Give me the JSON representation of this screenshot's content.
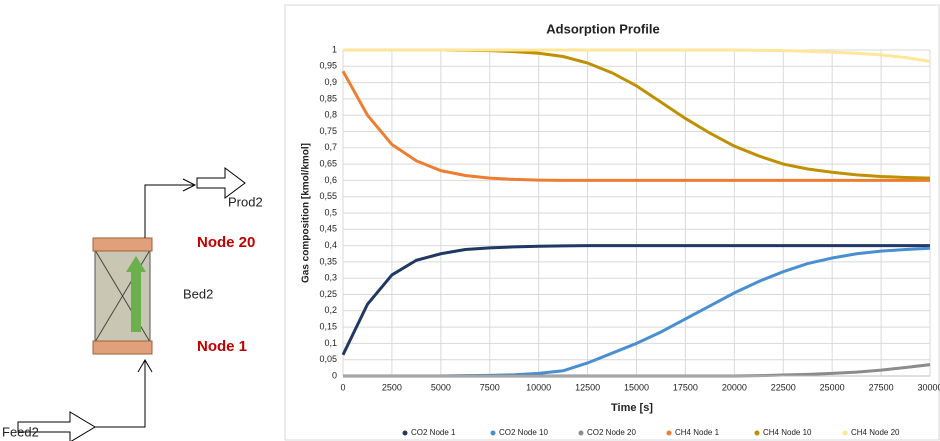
{
  "diagram": {
    "feed": "Feed2",
    "product": "Prod2",
    "bed": "Bed2",
    "top_node": "Node 20",
    "bottom_node": "Node 1"
  },
  "chart_data": {
    "type": "line",
    "title": "Adsorption Profile",
    "x_label": "Time [s]",
    "y_label": "Gas composition [kmol/kmol]",
    "x": [
      0,
      1250,
      2500,
      3750,
      5000,
      6250,
      7500,
      8750,
      10000,
      11250,
      12500,
      13750,
      15000,
      16250,
      17500,
      18750,
      20000,
      21250,
      22500,
      23750,
      25000,
      26250,
      27500,
      28750,
      30000
    ],
    "series": [
      {
        "name": "CO2 Node 1",
        "color": "#1f3864",
        "values": [
          0.065,
          0.22,
          0.31,
          0.355,
          0.375,
          0.388,
          0.393,
          0.396,
          0.398,
          0.399,
          0.4,
          0.4,
          0.4,
          0.4,
          0.4,
          0.4,
          0.4,
          0.4,
          0.4,
          0.4,
          0.4,
          0.4,
          0.4,
          0.4,
          0.4
        ]
      },
      {
        "name": "CO2 Node 10",
        "color": "#4a8fd0",
        "values": [
          0,
          0,
          0,
          0,
          0,
          0.001,
          0.002,
          0.004,
          0.008,
          0.016,
          0.04,
          0.07,
          0.1,
          0.135,
          0.175,
          0.215,
          0.255,
          0.29,
          0.32,
          0.345,
          0.362,
          0.375,
          0.383,
          0.388,
          0.392
        ]
      },
      {
        "name": "CO2 Node 20",
        "color": "#8c8c8c",
        "values": [
          0,
          0,
          0,
          0,
          0,
          0,
          0,
          0,
          0,
          0,
          0,
          0,
          0,
          0,
          0,
          0,
          0,
          0.001,
          0.003,
          0.005,
          0.008,
          0.012,
          0.018,
          0.026,
          0.035
        ]
      },
      {
        "name": "CH4 Node 1",
        "color": "#ed7d31",
        "values": [
          0.935,
          0.8,
          0.71,
          0.66,
          0.63,
          0.615,
          0.607,
          0.603,
          0.601,
          0.6,
          0.6,
          0.6,
          0.6,
          0.6,
          0.6,
          0.6,
          0.6,
          0.6,
          0.6,
          0.6,
          0.6,
          0.6,
          0.6,
          0.6,
          0.6
        ]
      },
      {
        "name": "CH4 Node 10",
        "color": "#bf9000",
        "values": [
          1,
          1,
          1,
          1,
          1,
          0.999,
          0.998,
          0.995,
          0.99,
          0.98,
          0.96,
          0.93,
          0.89,
          0.84,
          0.79,
          0.745,
          0.705,
          0.675,
          0.65,
          0.635,
          0.625,
          0.617,
          0.612,
          0.609,
          0.607
        ]
      },
      {
        "name": "CH4 Node 20",
        "color": "#ffe699",
        "values": [
          1,
          1,
          1,
          1,
          1,
          1,
          1,
          1,
          1,
          1,
          1,
          1,
          1,
          1,
          1,
          1,
          1,
          0.999,
          0.998,
          0.996,
          0.993,
          0.99,
          0.985,
          0.977,
          0.965
        ]
      }
    ],
    "xlim": [
      0,
      30000
    ],
    "xticks": [
      0,
      2500,
      5000,
      7500,
      10000,
      12500,
      15000,
      17500,
      20000,
      22500,
      25000,
      27500,
      30000
    ],
    "ylim": [
      0,
      1
    ],
    "yticks": [
      0,
      {
        "value": 0.05,
        "label": "0,05"
      },
      {
        "value": 0.1,
        "label": "0,1"
      },
      {
        "value": 0.15,
        "label": "0,15"
      },
      {
        "value": 0.2,
        "label": "0,2"
      },
      {
        "value": 0.25,
        "label": "0,25"
      },
      {
        "value": 0.3,
        "label": "0,3"
      },
      {
        "value": 0.35,
        "label": "0,35"
      },
      {
        "value": 0.4,
        "label": "0,4"
      },
      {
        "value": 0.45,
        "label": "0,45"
      },
      {
        "value": 0.5,
        "label": "0,5"
      },
      {
        "value": 0.55,
        "label": "0,55"
      },
      {
        "value": 0.6,
        "label": "0,6"
      },
      {
        "value": 0.65,
        "label": "0,65"
      },
      {
        "value": 0.7,
        "label": "0,7"
      },
      {
        "value": 0.75,
        "label": "0,75"
      },
      {
        "value": 0.8,
        "label": "0,8"
      },
      {
        "value": 0.85,
        "label": "0,85"
      },
      {
        "value": 0.9,
        "label": "0,9"
      },
      {
        "value": 0.95,
        "label": "0,95"
      },
      1
    ],
    "grid": true,
    "legend": "bottom"
  }
}
